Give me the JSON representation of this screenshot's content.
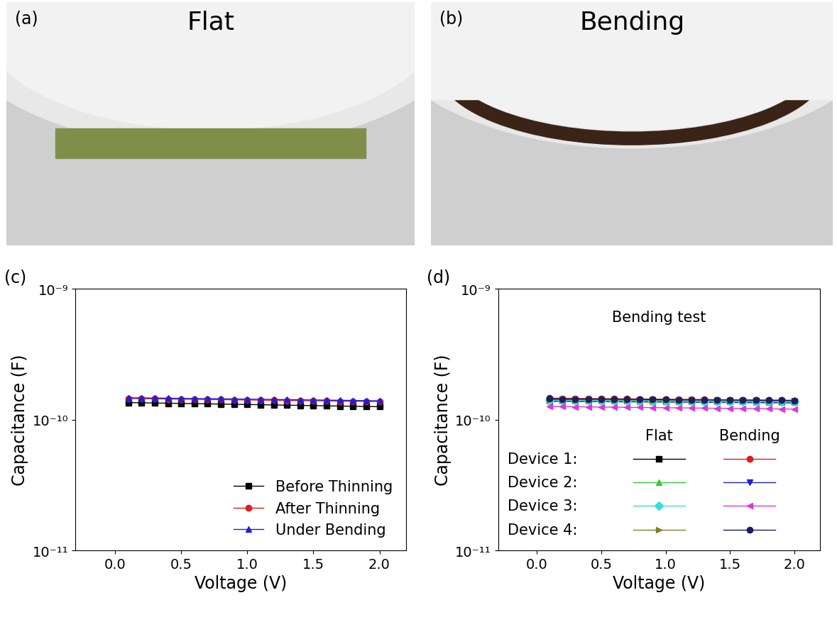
{
  "photos": [
    {
      "panel": "(a)",
      "title": "Flat"
    },
    {
      "panel": "(b)",
      "title": "Bending"
    }
  ],
  "chart_data": [
    {
      "type": "line",
      "panel": "(c)",
      "x_label": "Voltage (V)",
      "y_label": "Capacitance (F)",
      "log": "y",
      "xlim": [
        -0.3,
        2.2
      ],
      "ylim": [
        1e-11,
        1e-09
      ],
      "xticks": [
        0.0,
        0.5,
        1.0,
        1.5,
        2.0
      ],
      "yticks": [
        {
          "value": 1e-11,
          "label": "10⁻¹¹"
        },
        {
          "value": 1e-10,
          "label": "10⁻¹⁰"
        },
        {
          "value": 1e-09,
          "label": "10⁻⁹"
        }
      ],
      "legend": "lower right",
      "x": [
        0.1,
        0.2,
        0.3,
        0.4,
        0.5,
        0.6,
        0.7,
        0.8,
        0.9,
        1.0,
        1.1,
        1.2,
        1.3,
        1.4,
        1.5,
        1.6,
        1.7,
        1.8,
        1.9,
        2.0
      ],
      "series": [
        {
          "name": "Before Thinning",
          "color": "#000000",
          "marker": "square",
          "values": [
            1.35e-10,
            1.345e-10,
            1.34e-10,
            1.335e-10,
            1.33e-10,
            1.325e-10,
            1.32e-10,
            1.315e-10,
            1.31e-10,
            1.305e-10,
            1.3e-10,
            1.295e-10,
            1.29e-10,
            1.285e-10,
            1.28e-10,
            1.275e-10,
            1.27e-10,
            1.265e-10,
            1.26e-10,
            1.255e-10
          ]
        },
        {
          "name": "After Thinning",
          "color": "#e41a1c",
          "marker": "circle",
          "values": [
            1.45e-10,
            1.446e-10,
            1.442e-10,
            1.438e-10,
            1.434e-10,
            1.43e-10,
            1.426e-10,
            1.422e-10,
            1.418e-10,
            1.414e-10,
            1.41e-10,
            1.406e-10,
            1.402e-10,
            1.398e-10,
            1.394e-10,
            1.39e-10,
            1.386e-10,
            1.382e-10,
            1.378e-10,
            1.374e-10
          ]
        },
        {
          "name": "Under Bending",
          "color": "#1f1fd6",
          "marker": "triangle_up",
          "values": [
            1.47e-10,
            1.466e-10,
            1.462e-10,
            1.458e-10,
            1.454e-10,
            1.45e-10,
            1.446e-10,
            1.442e-10,
            1.438e-10,
            1.434e-10,
            1.43e-10,
            1.426e-10,
            1.422e-10,
            1.418e-10,
            1.414e-10,
            1.41e-10,
            1.406e-10,
            1.402e-10,
            1.398e-10,
            1.394e-10
          ]
        }
      ]
    },
    {
      "type": "line",
      "panel": "(d)",
      "x_label": "Voltage (V)",
      "y_label": "Capacitance (F)",
      "annotation": "Bending test",
      "log": "y",
      "xlim": [
        -0.3,
        2.2
      ],
      "ylim": [
        1e-11,
        1e-09
      ],
      "xticks": [
        0.0,
        0.5,
        1.0,
        1.5,
        2.0
      ],
      "yticks": [
        {
          "value": 1e-11,
          "label": "10⁻¹¹"
        },
        {
          "value": 1e-10,
          "label": "10⁻¹⁰"
        },
        {
          "value": 1e-09,
          "label": "10⁻⁹"
        }
      ],
      "legend": "lower left",
      "legend_columns": [
        "Flat",
        "Bending"
      ],
      "x": [
        0.1,
        0.2,
        0.3,
        0.4,
        0.5,
        0.6,
        0.7,
        0.8,
        0.9,
        1.0,
        1.1,
        1.2,
        1.3,
        1.4,
        1.5,
        1.6,
        1.7,
        1.8,
        1.9,
        2.0
      ],
      "series": [
        {
          "name": "Device 1:",
          "condition": "Flat",
          "color": "#000000",
          "marker": "square",
          "values": [
            1.42e-10,
            1.418e-10,
            1.416e-10,
            1.414e-10,
            1.412e-10,
            1.41e-10,
            1.408e-10,
            1.406e-10,
            1.404e-10,
            1.402e-10,
            1.4e-10,
            1.398e-10,
            1.396e-10,
            1.394e-10,
            1.392e-10,
            1.39e-10,
            1.388e-10,
            1.386e-10,
            1.384e-10,
            1.382e-10
          ]
        },
        {
          "name": "Device 1:",
          "condition": "Bending",
          "color": "#e41a1c",
          "marker": "circle",
          "values": [
            1.46e-10,
            1.457e-10,
            1.454e-10,
            1.451e-10,
            1.448e-10,
            1.445e-10,
            1.442e-10,
            1.439e-10,
            1.436e-10,
            1.433e-10,
            1.43e-10,
            1.427e-10,
            1.424e-10,
            1.421e-10,
            1.418e-10,
            1.415e-10,
            1.412e-10,
            1.409e-10,
            1.406e-10,
            1.403e-10
          ]
        },
        {
          "name": "Device 2:",
          "condition": "Flat",
          "color": "#33cc33",
          "marker": "triangle_up",
          "values": [
            1.4e-10,
            1.398e-10,
            1.396e-10,
            1.394e-10,
            1.392e-10,
            1.39e-10,
            1.388e-10,
            1.386e-10,
            1.384e-10,
            1.382e-10,
            1.38e-10,
            1.378e-10,
            1.376e-10,
            1.374e-10,
            1.372e-10,
            1.37e-10,
            1.368e-10,
            1.366e-10,
            1.364e-10,
            1.362e-10
          ]
        },
        {
          "name": "Device 2:",
          "condition": "Bending",
          "color": "#1f1fd6",
          "marker": "triangle_down",
          "values": [
            1.38e-10,
            1.378e-10,
            1.376e-10,
            1.374e-10,
            1.372e-10,
            1.37e-10,
            1.368e-10,
            1.366e-10,
            1.364e-10,
            1.362e-10,
            1.36e-10,
            1.358e-10,
            1.356e-10,
            1.354e-10,
            1.352e-10,
            1.35e-10,
            1.348e-10,
            1.346e-10,
            1.344e-10,
            1.342e-10
          ]
        },
        {
          "name": "Device 3:",
          "condition": "Flat",
          "color": "#33e0e0",
          "marker": "diamond",
          "values": [
            1.41e-10,
            1.408e-10,
            1.406e-10,
            1.404e-10,
            1.402e-10,
            1.4e-10,
            1.398e-10,
            1.396e-10,
            1.394e-10,
            1.392e-10,
            1.39e-10,
            1.388e-10,
            1.386e-10,
            1.384e-10,
            1.382e-10,
            1.38e-10,
            1.378e-10,
            1.376e-10,
            1.374e-10,
            1.372e-10
          ]
        },
        {
          "name": "Device 3:",
          "condition": "Bending",
          "color": "#e033e0",
          "marker": "triangle_left",
          "values": [
            1.26e-10,
            1.257e-10,
            1.254e-10,
            1.251e-10,
            1.248e-10,
            1.245e-10,
            1.242e-10,
            1.239e-10,
            1.236e-10,
            1.233e-10,
            1.23e-10,
            1.227e-10,
            1.224e-10,
            1.221e-10,
            1.218e-10,
            1.215e-10,
            1.212e-10,
            1.209e-10,
            1.206e-10,
            1.203e-10
          ]
        },
        {
          "name": "Device 4:",
          "condition": "Flat",
          "color": "#808020",
          "marker": "triangle_right",
          "values": [
            1.43e-10,
            1.428e-10,
            1.426e-10,
            1.424e-10,
            1.422e-10,
            1.42e-10,
            1.418e-10,
            1.416e-10,
            1.414e-10,
            1.412e-10,
            1.41e-10,
            1.408e-10,
            1.406e-10,
            1.404e-10,
            1.402e-10,
            1.4e-10,
            1.398e-10,
            1.396e-10,
            1.394e-10,
            1.392e-10
          ]
        },
        {
          "name": "Device 4:",
          "condition": "Bending",
          "color": "#1a2060",
          "marker": "circle",
          "values": [
            1.44e-10,
            1.438e-10,
            1.436e-10,
            1.434e-10,
            1.432e-10,
            1.43e-10,
            1.428e-10,
            1.426e-10,
            1.424e-10,
            1.422e-10,
            1.42e-10,
            1.418e-10,
            1.416e-10,
            1.414e-10,
            1.412e-10,
            1.41e-10,
            1.408e-10,
            1.406e-10,
            1.404e-10,
            1.402e-10
          ]
        }
      ]
    }
  ]
}
